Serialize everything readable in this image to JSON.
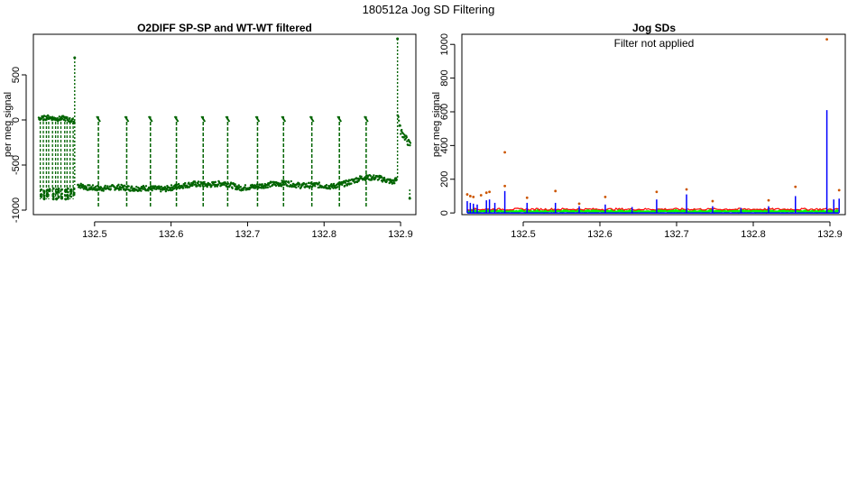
{
  "page": {
    "title": "180512a   Jog SD Filtering"
  },
  "colors": {
    "o2diff": "#006400",
    "sd_blue": "#0000ff",
    "sd_red": "#ff0000",
    "sd_green": "#00ff00",
    "sd_outlier": "#cc5500",
    "axis": "#000000"
  },
  "chart_data": [
    {
      "type": "scatter",
      "title": "O2DIFF SP-SP and WT-WT filtered",
      "xlabel": "",
      "ylabel": "per meg signal",
      "xlim": [
        132.42,
        132.92
      ],
      "ylim": [
        -1050,
        950
      ],
      "x_ticks": [
        132.5,
        132.6,
        132.7,
        132.8,
        132.9
      ],
      "x_tick_labels": [
        "132.5",
        "132.6",
        "132.7",
        "132.8",
        "132.9"
      ],
      "y_ticks": [
        -1000,
        -500,
        0,
        500
      ],
      "y_tick_labels": [
        "-1000",
        "-500",
        "0",
        "500"
      ],
      "grid": false,
      "series": [
        {
          "baseline": [
            [
              132.478,
              -720
            ],
            [
              132.49,
              -750
            ],
            [
              132.51,
              -760
            ],
            [
              132.53,
              -745
            ],
            [
              132.55,
              -760
            ],
            [
              132.57,
              -755
            ],
            [
              132.59,
              -770
            ],
            [
              132.61,
              -735
            ],
            [
              132.63,
              -710
            ],
            [
              132.65,
              -720
            ],
            [
              132.67,
              -700
            ],
            [
              132.69,
              -755
            ],
            [
              132.71,
              -740
            ],
            [
              132.73,
              -715
            ],
            [
              132.75,
              -700
            ],
            [
              132.77,
              -730
            ],
            [
              132.79,
              -720
            ],
            [
              132.81,
              -740
            ],
            [
              132.83,
              -700
            ],
            [
              132.85,
              -640
            ],
            [
              132.87,
              -640
            ],
            [
              132.89,
              -690
            ],
            [
              132.895,
              -660
            ]
          ],
          "early_segment": [
            [
              132.427,
              20
            ],
            [
              132.43,
              15
            ],
            [
              132.44,
              30
            ],
            [
              132.45,
              10
            ],
            [
              132.46,
              20
            ],
            [
              132.47,
              -10
            ],
            [
              132.474,
              -20
            ]
          ],
          "late_segment": [
            [
              132.896,
              80
            ],
            [
              132.9,
              -120
            ],
            [
              132.905,
              -180
            ],
            [
              132.91,
              -250
            ],
            [
              132.913,
              -280
            ]
          ],
          "excursion_times": [
            132.429,
            132.433,
            132.437,
            132.44,
            132.445,
            132.449,
            132.452,
            132.456,
            132.461,
            132.464,
            132.468,
            132.472
          ],
          "excursion_low": -880,
          "excursion_high": 30,
          "jogs": [
            132.505,
            132.542,
            132.573,
            132.607,
            132.642,
            132.674,
            132.713,
            132.747,
            132.784,
            132.82,
            132.855
          ],
          "jog_top": 40,
          "jog_bottom": -960,
          "spikes": [
            {
              "x": 132.474,
              "y": 690
            },
            {
              "x": 132.896,
              "y": 900
            },
            {
              "x": 132.912,
              "y": -870
            }
          ]
        }
      ]
    },
    {
      "type": "line",
      "title": "Jog SDs",
      "annotation": "Filter not applied",
      "xlabel": "",
      "ylabel": "per meg signal",
      "xlim": [
        132.42,
        132.92
      ],
      "ylim": [
        -10,
        1060
      ],
      "x_ticks": [
        132.5,
        132.6,
        132.7,
        132.8,
        132.9
      ],
      "x_tick_labels": [
        "132.5",
        "132.6",
        "132.7",
        "132.8",
        "132.9"
      ],
      "y_ticks": [
        0,
        200,
        400,
        600,
        800,
        1000
      ],
      "y_tick_labels": [
        "0",
        "200",
        "400",
        "600",
        "800",
        "1000"
      ],
      "grid": false,
      "series": [
        {
          "color": "blue",
          "spikes": [
            [
              132.427,
              70
            ],
            [
              132.431,
              60
            ],
            [
              132.435,
              55
            ],
            [
              132.44,
              50
            ],
            [
              132.452,
              75
            ],
            [
              132.456,
              80
            ],
            [
              132.463,
              60
            ],
            [
              132.476,
              130
            ],
            [
              132.505,
              60
            ],
            [
              132.542,
              60
            ],
            [
              132.573,
              40
            ],
            [
              132.607,
              50
            ],
            [
              132.642,
              35
            ],
            [
              132.674,
              80
            ],
            [
              132.713,
              110
            ],
            [
              132.747,
              40
            ],
            [
              132.784,
              30
            ],
            [
              132.82,
              40
            ],
            [
              132.855,
              100
            ],
            [
              132.896,
              610
            ],
            [
              132.905,
              80
            ],
            [
              132.912,
              85
            ]
          ]
        },
        {
          "color": "orange",
          "outliers": [
            [
              132.427,
              110
            ],
            [
              132.431,
              100
            ],
            [
              132.435,
              95
            ],
            [
              132.445,
              105
            ],
            [
              132.452,
              120
            ],
            [
              132.456,
              125
            ],
            [
              132.476,
              360
            ],
            [
              132.476,
              160
            ],
            [
              132.505,
              90
            ],
            [
              132.542,
              130
            ],
            [
              132.573,
              55
            ],
            [
              132.607,
              95
            ],
            [
              132.674,
              125
            ],
            [
              132.713,
              140
            ],
            [
              132.747,
              70
            ],
            [
              132.82,
              75
            ],
            [
              132.855,
              155
            ],
            [
              132.896,
              1030
            ],
            [
              132.912,
              135
            ]
          ]
        },
        {
          "color": "red",
          "level": 22
        },
        {
          "color": "green",
          "level": 8
        }
      ]
    }
  ]
}
